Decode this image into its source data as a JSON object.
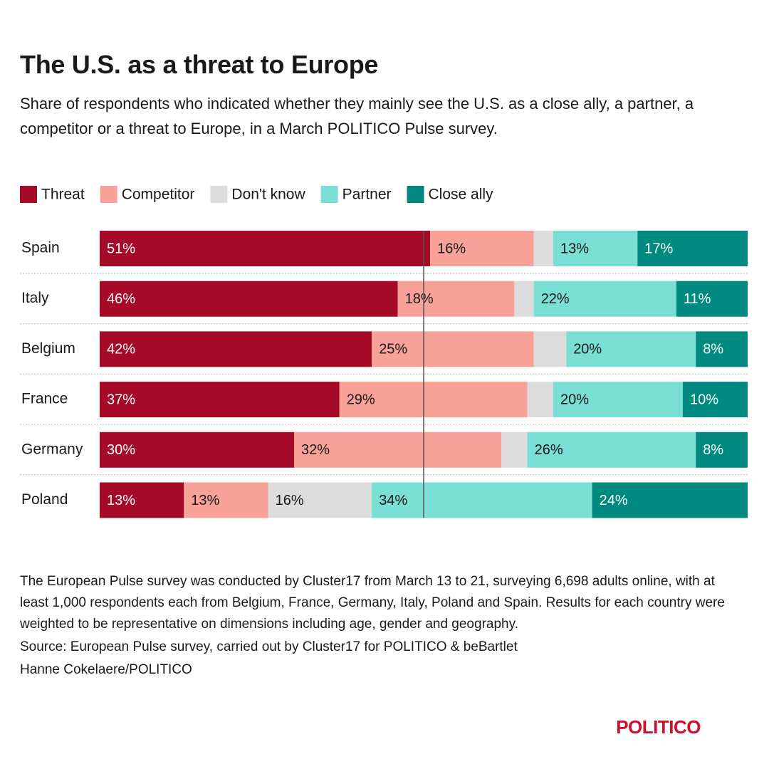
{
  "chart_data": {
    "type": "stacked-bar",
    "orientation": "horizontal",
    "title": "The U.S. as a threat to Europe",
    "subtitle": "Share of respondents who indicated whether they mainly see the U.S. as a close ally, a partner, a competitor or a threat to Europe, in a March POLITICO Pulse survey.",
    "categories": [
      "Spain",
      "Italy",
      "Belgium",
      "France",
      "Germany",
      "Poland"
    ],
    "series": [
      {
        "name": "Threat",
        "color": "#a50a26",
        "values": [
          51,
          46,
          42,
          37,
          30,
          13
        ],
        "value_labels": [
          "51%",
          "46%",
          "42%",
          "37%",
          "30%",
          "13%"
        ]
      },
      {
        "name": "Competitor",
        "color": "#f7a199",
        "values": [
          16,
          18,
          25,
          29,
          32,
          13
        ],
        "value_labels": [
          "16%",
          "18%",
          "25%",
          "29%",
          "32%",
          "13%"
        ]
      },
      {
        "name": "Don't know",
        "color": "#dcdcdc",
        "values": [
          3,
          3,
          5,
          4,
          4,
          16
        ],
        "value_labels": [
          null,
          null,
          null,
          null,
          null,
          "16%"
        ]
      },
      {
        "name": "Partner",
        "color": "#79ded4",
        "values": [
          13,
          22,
          20,
          20,
          26,
          34
        ],
        "value_labels": [
          "13%",
          "22%",
          "20%",
          "20%",
          "26%",
          "34%"
        ]
      },
      {
        "name": "Close ally",
        "color": "#00897e",
        "values": [
          17,
          11,
          8,
          10,
          8,
          24
        ],
        "value_labels": [
          "17%",
          "11%",
          "8%",
          "10%",
          "8%",
          "24%"
        ]
      }
    ],
    "xlim": [
      0,
      100
    ],
    "reference_line": 50,
    "legend": "top-left"
  },
  "footer": {
    "note": "The European Pulse survey was conducted by Cluster17 from March 13 to 21, surveying 6,698 adults online, with at least 1,000 respondents each from Belgium, France, Germany, Italy, Poland and Spain. Results for each country were weighted to be representative on dimensions including age, gender and geography.",
    "source": "Source: European Pulse survey, carried out by Cluster17 for POLITICO & beBartlet",
    "credit": "Hanne Cokelaere/POLITICO",
    "logo": "POLITICO"
  }
}
